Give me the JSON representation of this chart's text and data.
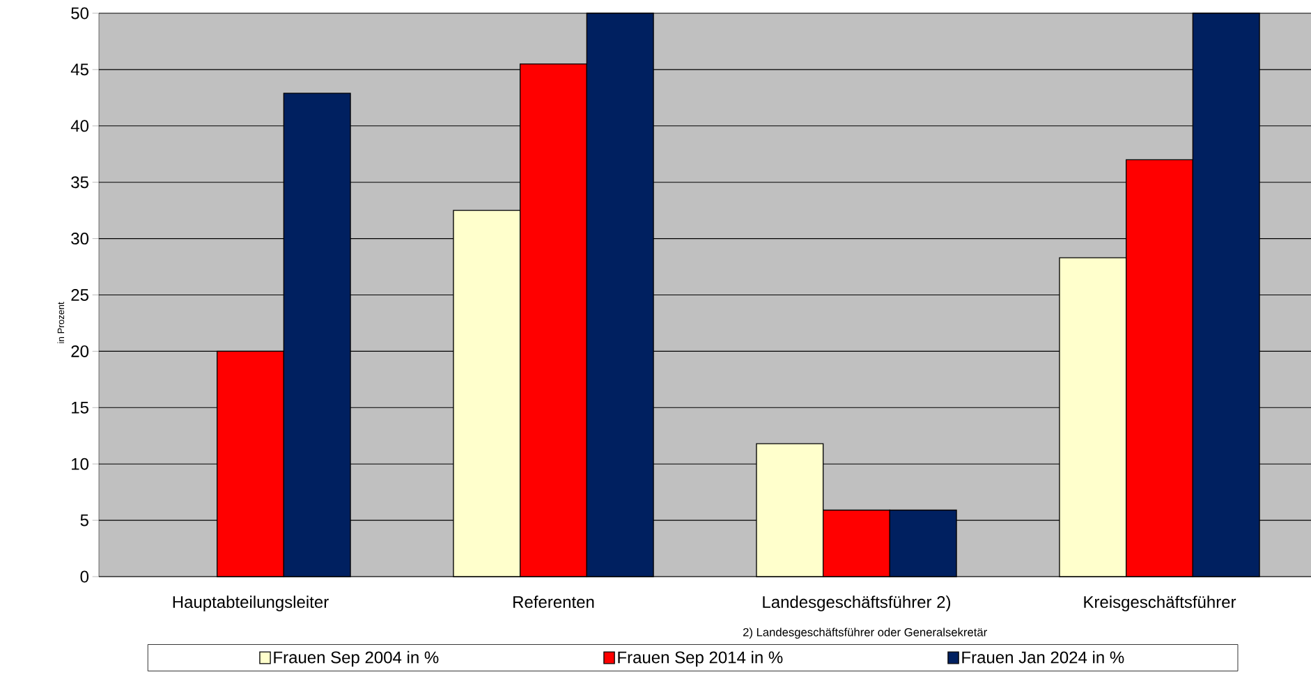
{
  "chart_data": {
    "type": "bar",
    "ylabel": "in Prozent",
    "categories": [
      "Hauptabteilungsleiter",
      "Referenten",
      "Landesgeschäftsführer 2)",
      "Kreisgeschäftsführer"
    ],
    "series": [
      {
        "name": "Frauen Sep 2004 in %",
        "color": "#ffffcc",
        "values": [
          null,
          32.5,
          11.8,
          28.3
        ]
      },
      {
        "name": "Frauen Sep 2014 in %",
        "color": "#ff0000",
        "values": [
          20,
          45.5,
          5.9,
          37.0
        ]
      },
      {
        "name": "Frauen Jan 2024 in %",
        "color": "#002060",
        "values": [
          42.9,
          50,
          5.9,
          50
        ]
      }
    ],
    "ylim": [
      0,
      50
    ],
    "yticks": [
      0,
      5,
      10,
      15,
      20,
      25,
      30,
      35,
      40,
      45,
      50
    ],
    "grid": "y",
    "legend": "bottom",
    "annotations": [
      "2) Landesgeschäftsführer oder Generalsekretär"
    ]
  }
}
